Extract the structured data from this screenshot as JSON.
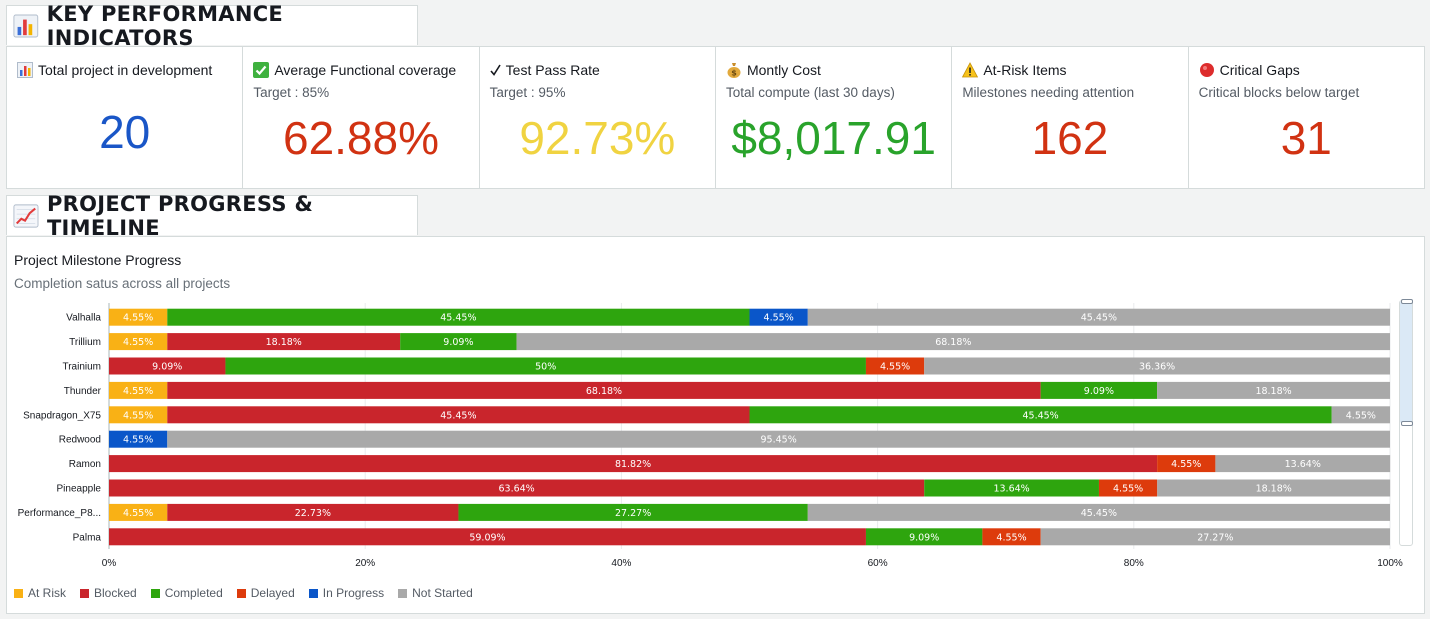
{
  "kpi_section": {
    "title": "KEY PERFORMANCE INDICATORS",
    "icon": "bar-chart-icon"
  },
  "kpis": [
    {
      "icon": "bar-chart-icon",
      "title": "Total project in development",
      "subtitle": "",
      "value": "20",
      "color": "#1a56c7"
    },
    {
      "icon": "check-mark-button-icon",
      "title": "Average Functional coverage",
      "subtitle": "Target : 85%",
      "value": "62.88%",
      "color": "#d13212"
    },
    {
      "icon": "check-mark-icon",
      "title": "Test Pass Rate",
      "subtitle": "Target : 95%",
      "value": "92.73%",
      "color": "#f0d341"
    },
    {
      "icon": "money-bag-icon",
      "title": "Montly Cost",
      "subtitle": "Total compute (last 30 days)",
      "value": "$8,017.91",
      "color": "#29a32b"
    },
    {
      "icon": "warning-icon",
      "title": "At-Risk Items",
      "subtitle": "Milestones needing attention",
      "value": "162",
      "color": "#d13212"
    },
    {
      "icon": "red-circle-icon",
      "title": "Critical Gaps",
      "subtitle": "Critical blocks below target",
      "value": "31",
      "color": "#d13212"
    }
  ],
  "progress_section": {
    "title": "PROJECT PROGRESS & TIMELINE",
    "icon": "line-chart-icon"
  },
  "chart_panel": {
    "title": "Project Milestone Progress",
    "subtitle": "Completion satus across all projects"
  },
  "chart_data": {
    "type": "bar",
    "orientation": "horizontal",
    "stacked": true,
    "categories": [
      "Valhalla",
      "Trillium",
      "Trainium",
      "Thunder",
      "Snapdragon_X75",
      "Redwood",
      "Ramon",
      "Pineapple",
      "Performance_P8...",
      "Palma"
    ],
    "series": [
      {
        "name": "At Risk",
        "color": "#f9b115",
        "values": [
          4.55,
          4.55,
          0,
          4.55,
          4.55,
          0,
          0,
          0,
          4.55,
          0
        ]
      },
      {
        "name": "Blocked",
        "color": "#c9252c",
        "values": [
          0,
          18.18,
          9.09,
          68.18,
          45.45,
          0,
          81.82,
          63.64,
          22.73,
          59.09
        ]
      },
      {
        "name": "Completed",
        "color": "#2ea50e",
        "values": [
          45.45,
          9.09,
          50,
          9.09,
          45.45,
          0,
          0,
          13.64,
          27.27,
          9.09
        ]
      },
      {
        "name": "Delayed",
        "color": "#dd3b0c",
        "values": [
          0,
          0,
          4.55,
          0,
          0,
          0,
          4.55,
          4.55,
          0,
          4.55
        ]
      },
      {
        "name": "In Progress",
        "color": "#0a56c9",
        "values": [
          4.55,
          0,
          0,
          0,
          0,
          4.55,
          0,
          0,
          0,
          0
        ]
      },
      {
        "name": "Not Started",
        "color": "#a9a9a9",
        "values": [
          45.45,
          68.18,
          36.36,
          18.18,
          4.55,
          95.45,
          13.64,
          18.18,
          45.45,
          27.27
        ]
      }
    ],
    "labels": [
      [
        "4.55%",
        "",
        "45.45%",
        "",
        "4.55%",
        "45.45%"
      ],
      [
        "4.55%",
        "18.18%",
        "9.09%",
        "",
        "",
        "68.18%"
      ],
      [
        "",
        "9.09%",
        "50%",
        "4.55%",
        "",
        "36.36%"
      ],
      [
        "4.55%",
        "68.18%",
        "9.09%",
        "",
        "",
        "18.18%"
      ],
      [
        "4.55%",
        "45.45%",
        "45.45%",
        "",
        "",
        "4.55%"
      ],
      [
        "",
        "",
        "",
        "",
        "4.55%",
        "95.45%"
      ],
      [
        "",
        "81.82%",
        "",
        "4.55%",
        "",
        "13.64%"
      ],
      [
        "",
        "63.64%",
        "13.64%",
        "4.55%",
        "",
        "18.18%"
      ],
      [
        "4.55%",
        "22.73%",
        "27.27%",
        "",
        "",
        "45.45%"
      ],
      [
        "",
        "59.09%",
        "9.09%",
        "4.55%",
        "",
        "27.27%"
      ]
    ],
    "x_ticks": [
      "0%",
      "20%",
      "40%",
      "60%",
      "80%",
      "100%"
    ],
    "xlim": [
      0,
      100
    ],
    "grid": true,
    "legend_position": "bottom-left"
  }
}
